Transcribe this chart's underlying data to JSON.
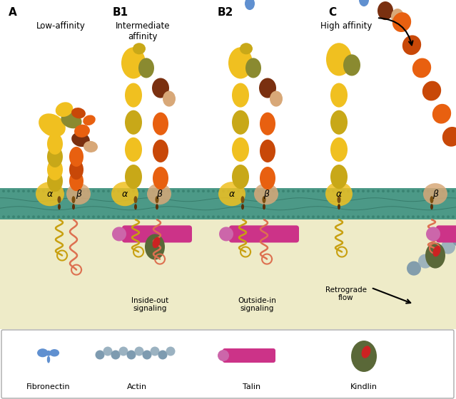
{
  "bg_top": "#ffffff",
  "bg_bottom": "#eeebc8",
  "membrane_color_outer": "#3a9080",
  "membrane_color_inner": "#4aaa95",
  "colors": {
    "yellow": "#f0c020",
    "dark_yellow": "#c8a818",
    "olive": "#8a8a30",
    "orange": "#e86010",
    "dark_orange": "#c84808",
    "brown": "#7a3010",
    "tan": "#d8a878",
    "blue_fib": "#6090d0",
    "talin_pink": "#cc3388",
    "talin_head": "#cc66aa",
    "kindlin_green": "#5a6838",
    "kindlin_red": "#cc2222",
    "actin": "#7090a8",
    "actin2": "#90aabb",
    "gold": "#c8a010",
    "salmon": "#dd7050",
    "tm_brown": "#7a5010",
    "tm_dark": "#5a3008"
  },
  "labels": {
    "A": "A",
    "B1": "B1",
    "B2": "B2",
    "C": "C",
    "low": "Low-affinity",
    "inter": "Intermediate\naffinity",
    "high": "High affinity",
    "inside_out": "Inside-out\nsignaling",
    "outside_in": "Outside-in\nsignaling",
    "retro": "Retrograde\nflow",
    "fibronectin": "Fibronectin",
    "actin": "Actin",
    "talin": "Talin",
    "kindlin": "Kindlin"
  }
}
